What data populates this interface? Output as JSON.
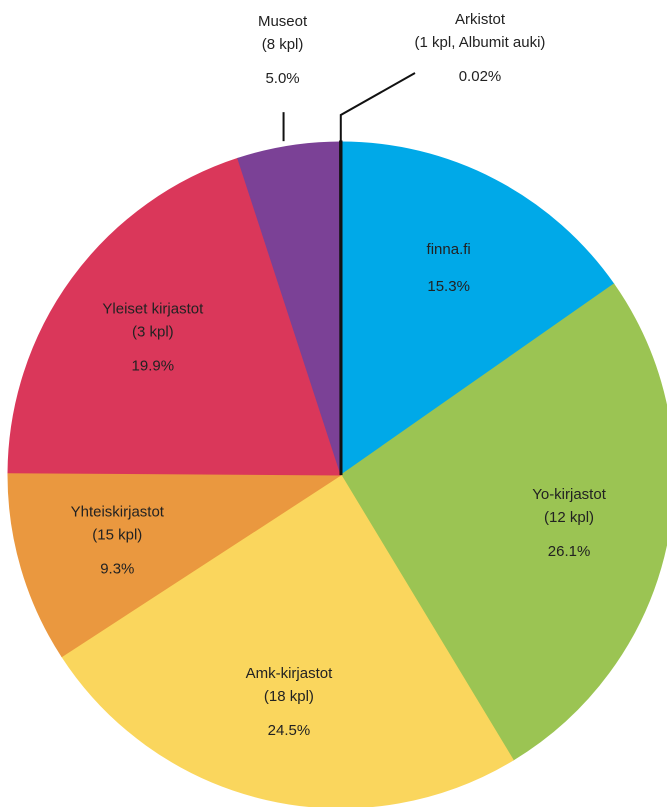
{
  "chart_data": {
    "type": "pie",
    "categories": [
      "finna.fi",
      "Yo-kirjastot",
      "Amk-kirjastot",
      "Yhteiskirjastot",
      "Yleiset kirjastot",
      "Museot",
      "Arkistot"
    ],
    "details": [
      null,
      "(12 kpl)",
      "(18 kpl)",
      "(15 kpl)",
      "(3 kpl)",
      "(8 kpl)",
      "(1 kpl, Albumit auki)"
    ],
    "values": [
      15.3,
      26.1,
      24.5,
      9.3,
      19.9,
      5.0,
      0.02
    ],
    "value_labels": [
      "15.3%",
      "26.1%",
      "24.5%",
      "9.3%",
      "19.9%",
      "5.0%",
      "0.02%"
    ],
    "colors": [
      "#00a9e8",
      "#9bc453",
      "#fad65d",
      "#ea983f",
      "#da375a",
      "#7b4196",
      "#111111"
    ]
  }
}
